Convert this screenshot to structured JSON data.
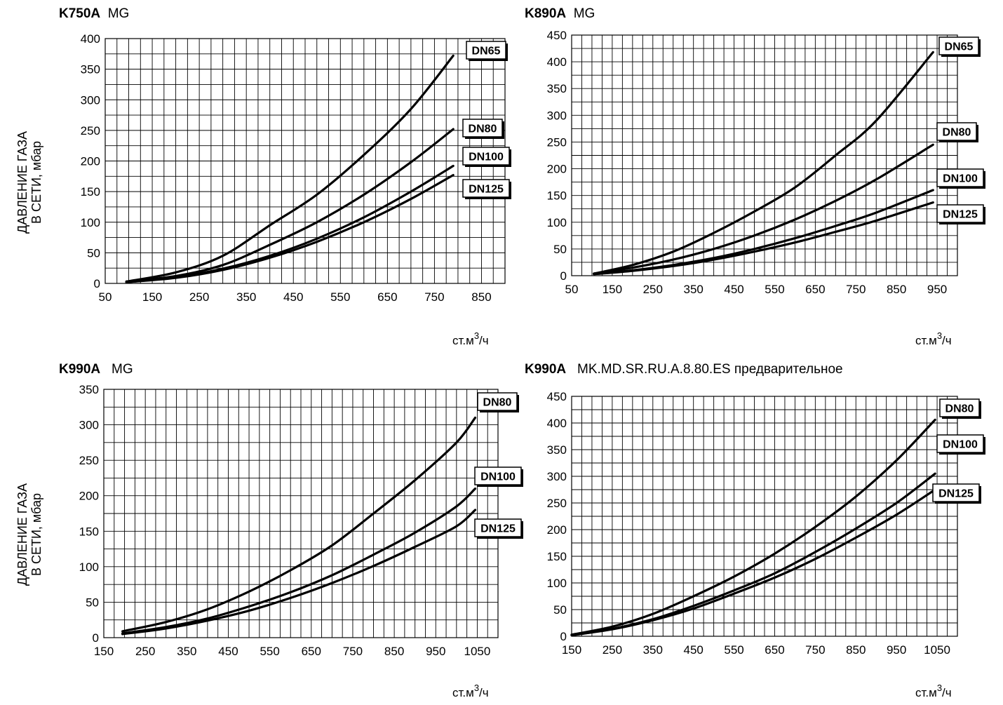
{
  "y_axis_label": {
    "line1": "ДАВЛЕНИЕ ГАЗА",
    "line2": "В СЕТИ, мбар"
  },
  "chart_data": [
    {
      "type": "line",
      "title_model": "K750A",
      "title_suffix": "MG",
      "xlabel": "ст.м³/ч",
      "ylabel": "ДАВЛЕНИЕ ГАЗА В СЕТИ, мбар",
      "xlim": [
        50,
        900
      ],
      "ylim": [
        0,
        400
      ],
      "x_ticks": [
        50,
        150,
        250,
        350,
        450,
        550,
        650,
        750,
        850
      ],
      "y_ticks": [
        0,
        50,
        100,
        150,
        200,
        250,
        300,
        350,
        400
      ],
      "grid": true,
      "series": [
        {
          "name": "DN65",
          "x": [
            95,
            200,
            300,
            400,
            500,
            600,
            700,
            790
          ],
          "y": [
            3,
            18,
            45,
            95,
            145,
            210,
            285,
            372
          ]
        },
        {
          "name": "DN80",
          "x": [
            95,
            200,
            300,
            400,
            500,
            600,
            700,
            790
          ],
          "y": [
            3,
            12,
            30,
            63,
            100,
            145,
            198,
            252
          ]
        },
        {
          "name": "DN100",
          "x": [
            95,
            200,
            300,
            400,
            500,
            600,
            700,
            790
          ],
          "y": [
            2,
            10,
            24,
            45,
            73,
            108,
            150,
            192
          ]
        },
        {
          "name": "DN125",
          "x": [
            95,
            200,
            300,
            400,
            500,
            600,
            700,
            790
          ],
          "y": [
            2,
            9,
            22,
            42,
            68,
            100,
            138,
            177
          ]
        }
      ]
    },
    {
      "type": "line",
      "title_model": "K890A",
      "title_suffix": "MG",
      "xlabel": "ст.м³/ч",
      "ylabel": "ДАВЛЕНИЕ ГАЗА В СЕТИ, мбар",
      "xlim": [
        50,
        1000
      ],
      "ylim": [
        0,
        450
      ],
      "x_ticks": [
        50,
        150,
        250,
        350,
        450,
        550,
        650,
        750,
        850,
        950
      ],
      "y_ticks": [
        0,
        50,
        100,
        150,
        200,
        250,
        300,
        350,
        400,
        450
      ],
      "grid": true,
      "series": [
        {
          "name": "DN65",
          "x": [
            105,
            200,
            300,
            400,
            500,
            600,
            700,
            800,
            940
          ],
          "y": [
            4,
            20,
            45,
            80,
            120,
            165,
            225,
            290,
            418
          ]
        },
        {
          "name": "DN80",
          "x": [
            105,
            200,
            300,
            400,
            500,
            600,
            700,
            800,
            940
          ],
          "y": [
            4,
            15,
            30,
            50,
            75,
            105,
            140,
            180,
            245
          ]
        },
        {
          "name": "DN100",
          "x": [
            105,
            200,
            300,
            400,
            500,
            600,
            700,
            800,
            940
          ],
          "y": [
            3,
            10,
            20,
            33,
            50,
            70,
            93,
            118,
            160
          ]
        },
        {
          "name": "DN125",
          "x": [
            105,
            200,
            300,
            400,
            500,
            600,
            700,
            800,
            940
          ],
          "y": [
            3,
            9,
            18,
            30,
            45,
            62,
            82,
            103,
            137
          ]
        }
      ]
    },
    {
      "type": "line",
      "title_model": "K990A",
      "title_suffix": "MG",
      "xlabel": "ст.м³/ч",
      "ylabel": "ДАВЛЕНИЕ ГАЗА В СЕТИ, мбар",
      "xlim": [
        150,
        1100
      ],
      "ylim": [
        0,
        350
      ],
      "x_ticks": [
        150,
        250,
        350,
        450,
        550,
        650,
        750,
        850,
        950,
        1050
      ],
      "y_ticks": [
        0,
        50,
        100,
        150,
        200,
        250,
        300,
        350
      ],
      "grid": true,
      "series": [
        {
          "name": "DN80",
          "x": [
            195,
            300,
            400,
            500,
            600,
            700,
            800,
            900,
            1000,
            1045
          ],
          "y": [
            9,
            22,
            40,
            65,
            95,
            130,
            175,
            222,
            275,
            310
          ]
        },
        {
          "name": "DN100",
          "x": [
            195,
            300,
            400,
            500,
            600,
            700,
            800,
            900,
            1000,
            1045
          ],
          "y": [
            6,
            15,
            27,
            44,
            64,
            88,
            117,
            148,
            185,
            210
          ]
        },
        {
          "name": "DN125",
          "x": [
            195,
            300,
            400,
            500,
            600,
            700,
            800,
            900,
            1000,
            1045
          ],
          "y": [
            5,
            13,
            24,
            38,
            56,
            77,
            101,
            128,
            157,
            180
          ]
        }
      ]
    },
    {
      "type": "line",
      "title_model": "K990A",
      "title_suffix": "MK.MD.SR.RU.A.8.80.ES предварительное",
      "xlabel": "ст.м³/ч",
      "ylabel": "",
      "xlim": [
        150,
        1100
      ],
      "ylim": [
        0,
        450
      ],
      "x_ticks": [
        150,
        250,
        350,
        450,
        550,
        650,
        750,
        850,
        950,
        1050
      ],
      "y_ticks": [
        0,
        50,
        100,
        150,
        200,
        250,
        300,
        350,
        400,
        450
      ],
      "grid": true,
      "series": [
        {
          "name": "DN80",
          "x": [
            150,
            250,
            350,
            450,
            550,
            650,
            750,
            850,
            950,
            1045
          ],
          "y": [
            3,
            18,
            42,
            75,
            112,
            155,
            205,
            262,
            330,
            406
          ]
        },
        {
          "name": "DN100",
          "x": [
            150,
            250,
            350,
            450,
            550,
            650,
            750,
            850,
            950,
            1045
          ],
          "y": [
            2,
            14,
            32,
            57,
            86,
            118,
            158,
            202,
            250,
            305
          ]
        },
        {
          "name": "DN125",
          "x": [
            150,
            250,
            350,
            450,
            550,
            650,
            750,
            850,
            950,
            1045
          ],
          "y": [
            2,
            13,
            30,
            52,
            80,
            110,
            145,
            185,
            228,
            275
          ]
        }
      ]
    }
  ]
}
